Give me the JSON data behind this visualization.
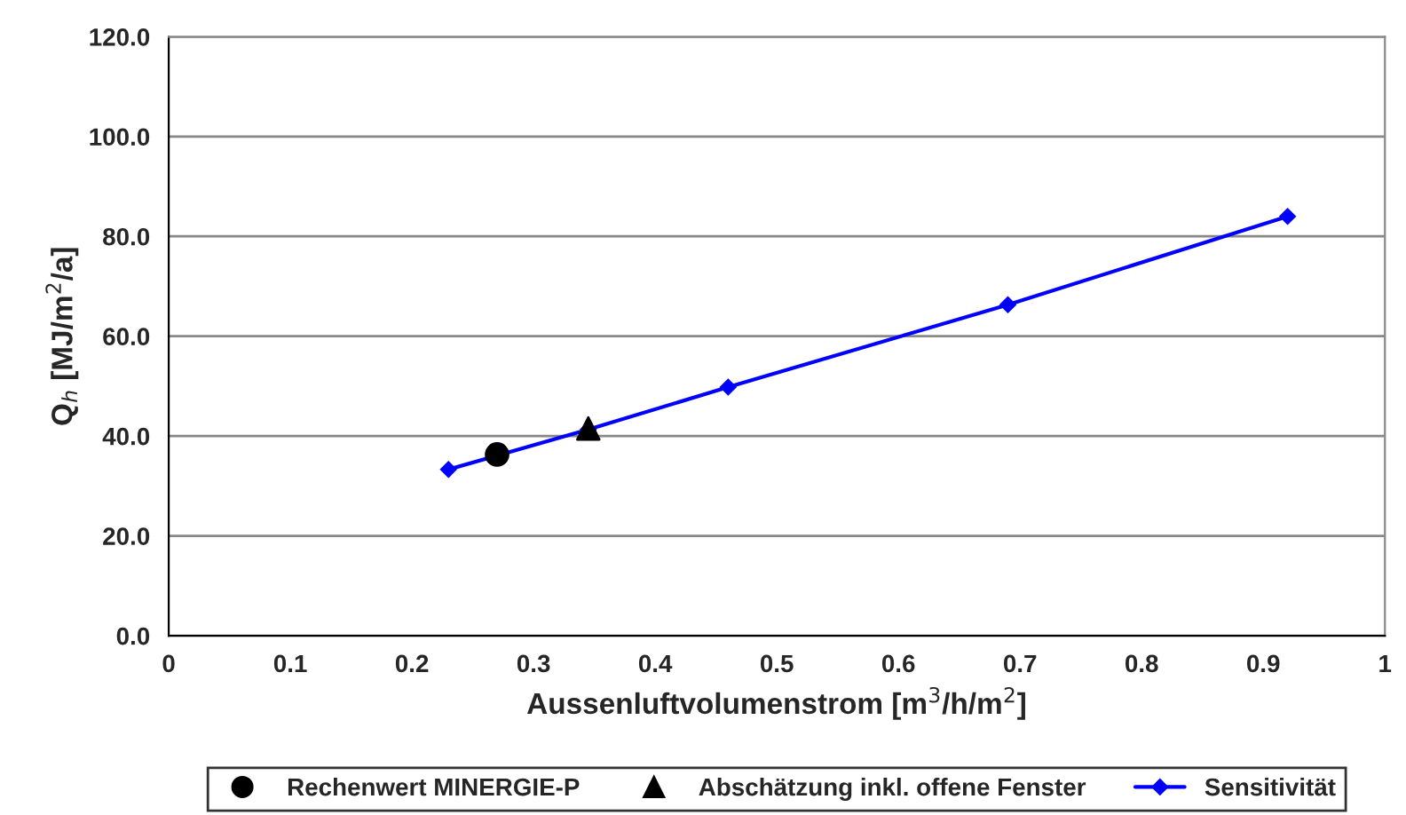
{
  "chart_data": {
    "type": "line",
    "xlabel": "Aussenluftvolumenstrom [m$^{3}$/h/m$^{2}$]",
    "ylabel": "Q$_{h}$ [MJ/m$^{2}$/a]",
    "series": [
      {
        "name": "Rechenwert MINERGIE-P",
        "type": "scatter",
        "marker": "circle",
        "color": "#000000",
        "x": [
          0.27
        ],
        "values": [
          36.3
        ]
      },
      {
        "name": "Abschätzung inkl. offene Fenster",
        "type": "scatter",
        "marker": "triangle",
        "color": "#000000",
        "x": [
          0.345
        ],
        "values": [
          41.5
        ]
      },
      {
        "name": "Sensitivität",
        "marker": "diamond",
        "color": "#0000ff",
        "x": [
          0.23,
          0.345,
          0.46,
          0.69,
          0.92
        ],
        "values": [
          33.3,
          41.3,
          49.8,
          66.3,
          84.0
        ]
      }
    ],
    "xlim": [
      0,
      1
    ],
    "xticks": [
      0,
      0.1,
      0.2,
      0.3,
      0.4,
      0.5,
      0.6,
      0.7,
      0.8,
      0.9,
      1
    ],
    "ylim": [
      0,
      120
    ],
    "yticks": [
      {
        "value": 0,
        "label": "0.0"
      },
      {
        "value": 20,
        "label": "20.0"
      },
      {
        "value": 40,
        "label": "40.0"
      },
      {
        "value": 60,
        "label": "60.0"
      },
      {
        "value": 80,
        "label": "80.0"
      },
      {
        "value": 100,
        "label": "100.0"
      },
      {
        "value": 120,
        "label": "120.0"
      }
    ],
    "grid": "y",
    "legend": "bottom"
  }
}
